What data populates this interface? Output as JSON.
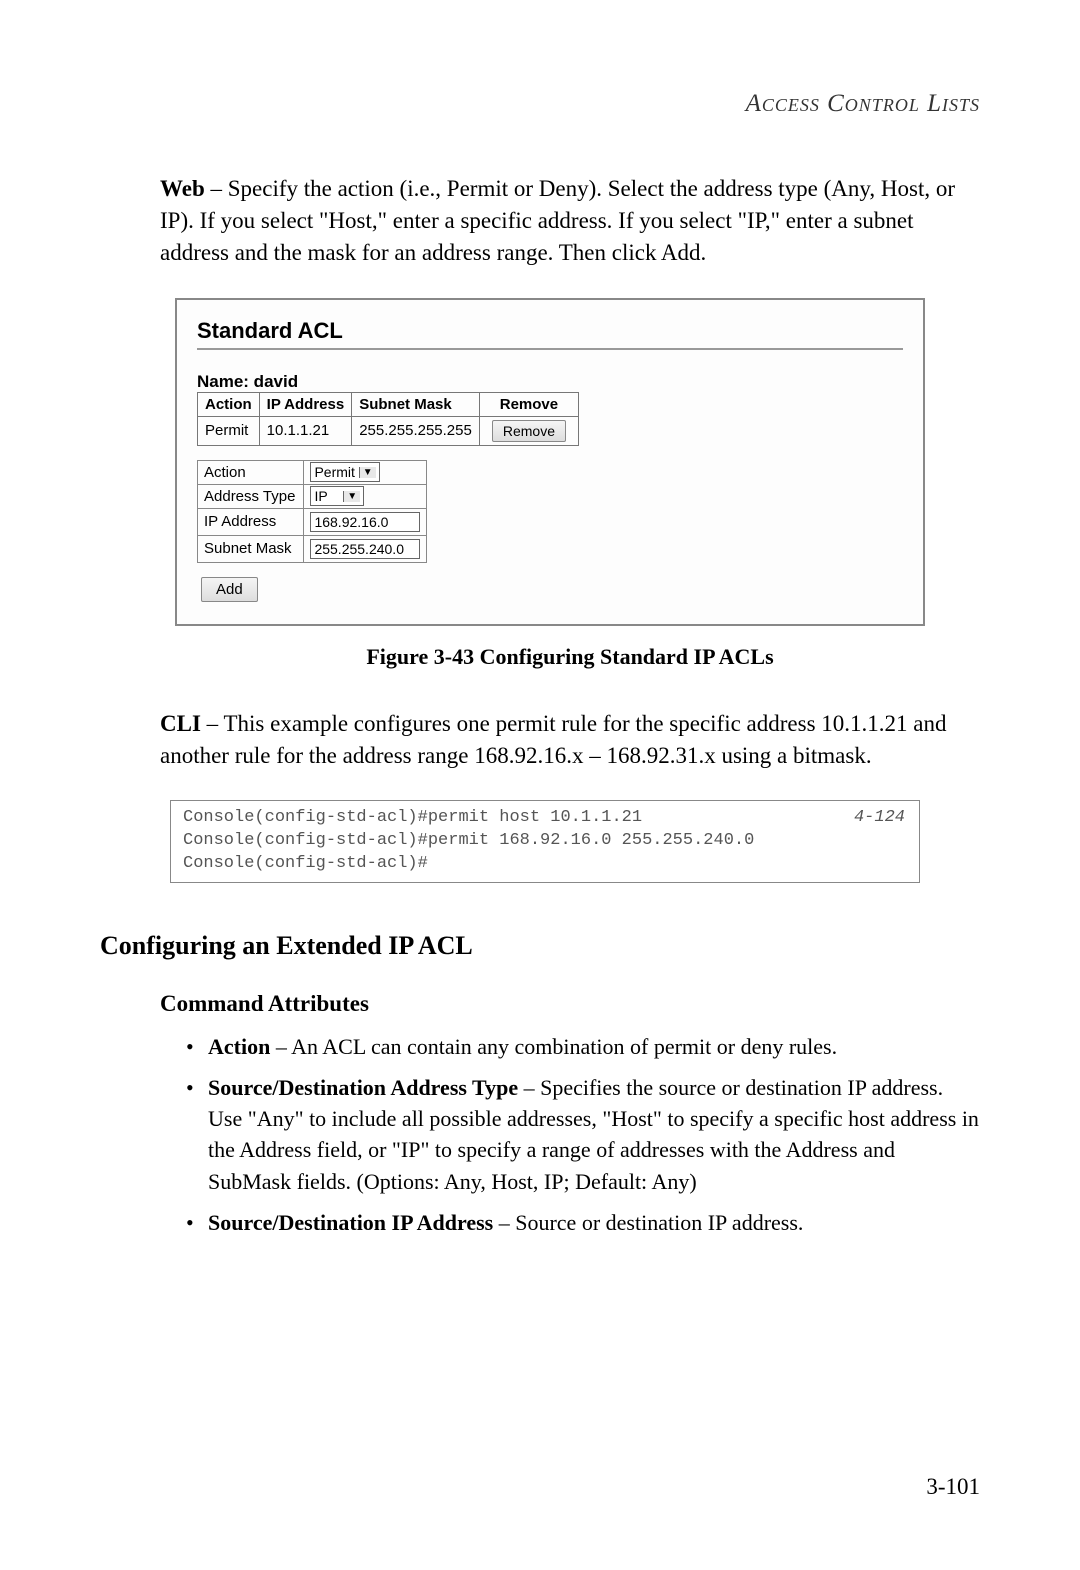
{
  "header": {
    "title": "Access Control Lists"
  },
  "para1": {
    "bold": "Web",
    "text": " – Specify the action (i.e., Permit or Deny). Select the address type (Any, Host, or IP). If you select \"Host,\" enter a specific address. If you select \"IP,\" enter a subnet address and the mask for an address range. Then click Add."
  },
  "screenshot": {
    "title": "Standard ACL",
    "name_label": "Name: david",
    "table": {
      "headers": [
        "Action",
        "IP Address",
        "Subnet Mask",
        "Remove"
      ],
      "row": {
        "action": "Permit",
        "ip": "10.1.1.21",
        "mask": "255.255.255.255"
      },
      "remove_btn": "Remove"
    },
    "form": {
      "action_label": "Action",
      "action_value": "Permit",
      "addrtype_label": "Address Type",
      "addrtype_value": "IP",
      "ipaddr_label": "IP Address",
      "ipaddr_value": "168.92.16.0",
      "mask_label": "Subnet Mask",
      "mask_value": "255.255.240.0"
    },
    "add_btn": "Add"
  },
  "figure_caption": "Figure 3-43  Configuring Standard IP ACLs",
  "para2": {
    "bold": "CLI",
    "text": " – This example configures one permit rule for the specific address 10.1.1.21 and another rule for the address range 168.92.16.x – 168.92.31.x using a bitmask."
  },
  "cli": {
    "line1": "Console(config-std-acl)#permit host 10.1.1.21",
    "line2": "Console(config-std-acl)#permit 168.92.16.0 255.255.240.0",
    "line3": "Console(config-std-acl)#",
    "ref": "4-124"
  },
  "section": "Configuring an Extended IP ACL",
  "sub": "Command Attributes",
  "bullets": {
    "b1_bold": "Action",
    "b1_text": " – An ACL can contain any combination of permit or deny rules.",
    "b2_bold": "Source/Destination Address Type",
    "b2_text": " – Specifies the source or destination IP address. Use \"Any\" to include all possible addresses, \"Host\" to specify a specific host address in the Address field, or \"IP\" to specify a range of addresses with the Address and SubMask fields. (Options: Any, Host, IP; Default: Any)",
    "b3_bold": "Source/Destination IP Address",
    "b3_text": " – Source or destination IP address."
  },
  "page_number": "3-101"
}
